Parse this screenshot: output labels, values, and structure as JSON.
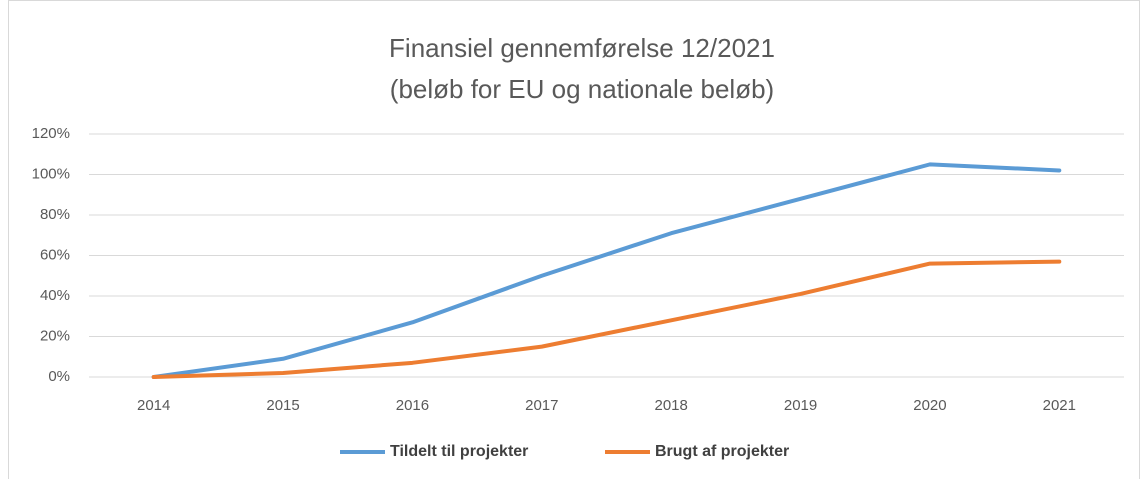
{
  "chart_data": {
    "type": "line",
    "title": "Finansiel gennemførelse 12/2021",
    "subtitle": "(beløb for EU og nationale beløb)",
    "categories": [
      "2014",
      "2015",
      "2016",
      "2017",
      "2018",
      "2019",
      "2020",
      "2021"
    ],
    "series": [
      {
        "name": "Tildelt til projekter",
        "color": "#5b9bd5",
        "values": [
          0,
          9,
          27,
          50,
          71,
          88,
          105,
          102
        ]
      },
      {
        "name": "Brugt af projekter",
        "color": "#ed7d31",
        "values": [
          0,
          2,
          7,
          15,
          28,
          41,
          56,
          57
        ]
      }
    ],
    "ylim": [
      0,
      120
    ],
    "yticks": [
      {
        "value": 0,
        "label": "0%"
      },
      {
        "value": 20,
        "label": "20%"
      },
      {
        "value": 40,
        "label": "40%"
      },
      {
        "value": 60,
        "label": "60%"
      },
      {
        "value": 80,
        "label": "80%"
      },
      {
        "value": 100,
        "label": "100%"
      },
      {
        "value": 120,
        "label": "120%"
      }
    ],
    "grid": true,
    "legend": "bottom"
  }
}
